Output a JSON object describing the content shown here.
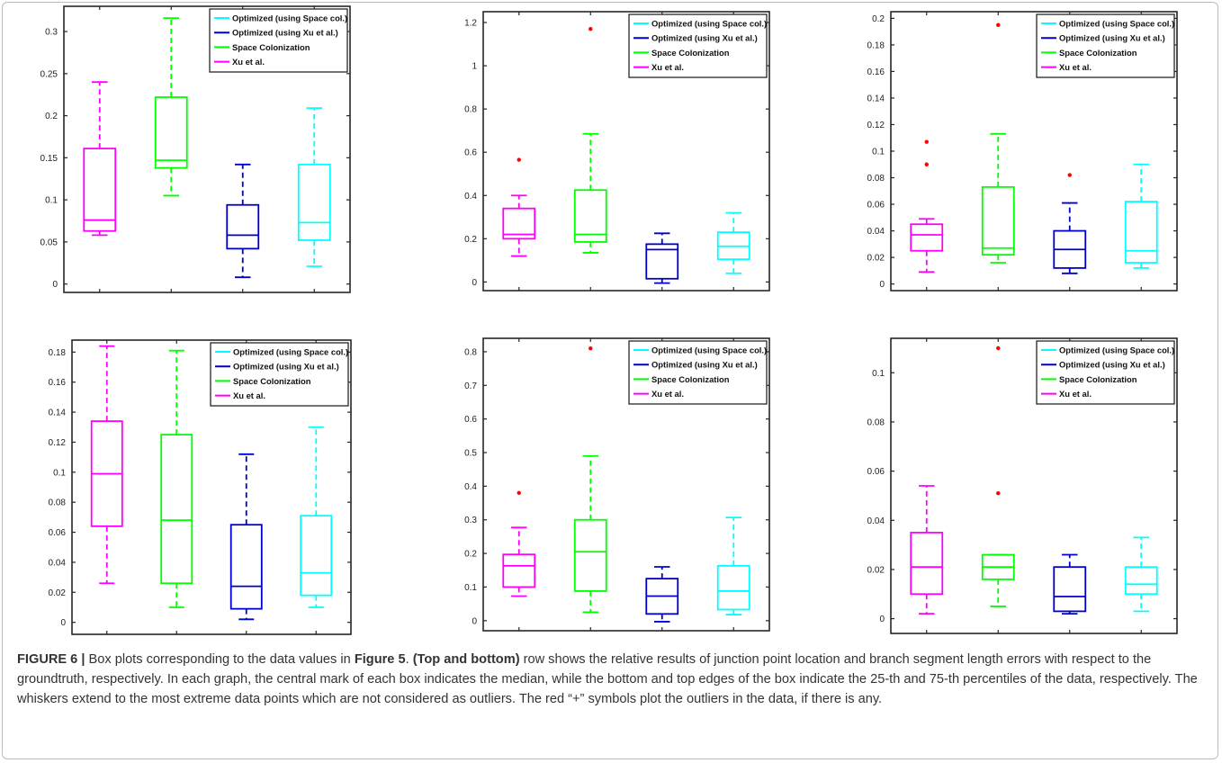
{
  "chart_data": [
    {
      "type": "box",
      "panel": "top-left",
      "title": "",
      "xlabel": "",
      "ylabel": "",
      "ylim": [
        -0.01,
        0.33
      ],
      "yticks": [
        0,
        0.05,
        0.1,
        0.15,
        0.2,
        0.25,
        0.3
      ],
      "ytick_labels": [
        "0",
        "0.05",
        "0.1",
        "0.15",
        "0.2",
        "0.25",
        "0.3"
      ],
      "legend_position": "top-right",
      "series": [
        {
          "name": "Xu et al.",
          "color": "#ff00ff",
          "whisker_low": 0.058,
          "q1": 0.063,
          "median": 0.076,
          "q3": 0.161,
          "whisker_high": 0.24,
          "outliers": []
        },
        {
          "name": "Space Colonization",
          "color": "#00ff00",
          "whisker_low": 0.105,
          "q1": 0.138,
          "median": 0.147,
          "q3": 0.222,
          "whisker_high": 0.316,
          "outliers": []
        },
        {
          "name": "Optimized (using Xu et al.)",
          "color": "#0000cc",
          "whisker_low": 0.008,
          "q1": 0.042,
          "median": 0.058,
          "q3": 0.094,
          "whisker_high": 0.142,
          "outliers": []
        },
        {
          "name": "Optimized (using Space col.)",
          "color": "#00ffff",
          "whisker_low": 0.021,
          "q1": 0.052,
          "median": 0.073,
          "q3": 0.142,
          "whisker_high": 0.209,
          "outliers": []
        }
      ]
    },
    {
      "type": "box",
      "panel": "top-middle",
      "title": "",
      "xlabel": "",
      "ylabel": "",
      "ylim": [
        -0.04,
        1.25
      ],
      "yticks": [
        0,
        0.2,
        0.4,
        0.6,
        0.8,
        1,
        1.2
      ],
      "ytick_labels": [
        "0",
        "0.2",
        "0.4",
        "0.6",
        "0.8",
        "1",
        "1.2"
      ],
      "legend_position": "top-right",
      "series": [
        {
          "name": "Xu et al.",
          "color": "#ff00ff",
          "whisker_low": 0.12,
          "q1": 0.2,
          "median": 0.22,
          "q3": 0.34,
          "whisker_high": 0.4,
          "outliers": [
            0.565
          ]
        },
        {
          "name": "Space Colonization",
          "color": "#00ff00",
          "whisker_low": 0.135,
          "q1": 0.185,
          "median": 0.22,
          "q3": 0.425,
          "whisker_high": 0.685,
          "outliers": [
            1.17
          ]
        },
        {
          "name": "Optimized (using Xu et al.)",
          "color": "#0000cc",
          "whisker_low": -0.005,
          "q1": 0.015,
          "median": 0.15,
          "q3": 0.175,
          "whisker_high": 0.225,
          "outliers": []
        },
        {
          "name": "Optimized (using Space col.)",
          "color": "#00ffff",
          "whisker_low": 0.04,
          "q1": 0.105,
          "median": 0.165,
          "q3": 0.23,
          "whisker_high": 0.32,
          "outliers": []
        }
      ]
    },
    {
      "type": "box",
      "panel": "top-right",
      "title": "",
      "xlabel": "",
      "ylabel": "",
      "ylim": [
        -0.005,
        0.205
      ],
      "yticks": [
        0,
        0.02,
        0.04,
        0.06,
        0.08,
        0.1,
        0.12,
        0.14,
        0.16,
        0.18,
        0.2
      ],
      "ytick_labels": [
        "0",
        "0.02",
        "0.04",
        "0.06",
        "0.08",
        "0.1",
        "0.12",
        "0.14",
        "0.16",
        "0.18",
        "0.2"
      ],
      "legend_position": "top-right",
      "series": [
        {
          "name": "Xu et al.",
          "color": "#ff00ff",
          "whisker_low": 0.009,
          "q1": 0.025,
          "median": 0.037,
          "q3": 0.045,
          "whisker_high": 0.049,
          "outliers": [
            0.09,
            0.107
          ]
        },
        {
          "name": "Space Colonization",
          "color": "#00ff00",
          "whisker_low": 0.016,
          "q1": 0.022,
          "median": 0.027,
          "q3": 0.073,
          "whisker_high": 0.113,
          "outliers": [
            0.195
          ]
        },
        {
          "name": "Optimized (using Xu et al.)",
          "color": "#0000cc",
          "whisker_low": 0.008,
          "q1": 0.012,
          "median": 0.026,
          "q3": 0.04,
          "whisker_high": 0.061,
          "outliers": [
            0.082
          ]
        },
        {
          "name": "Optimized (using Space col.)",
          "color": "#00ffff",
          "whisker_low": 0.012,
          "q1": 0.016,
          "median": 0.025,
          "q3": 0.062,
          "whisker_high": 0.09,
          "outliers": []
        }
      ]
    },
    {
      "type": "box",
      "panel": "bottom-left",
      "title": "",
      "xlabel": "",
      "ylabel": "",
      "ylim": [
        -0.008,
        0.188
      ],
      "yticks": [
        0,
        0.02,
        0.04,
        0.06,
        0.08,
        0.1,
        0.12,
        0.14,
        0.16,
        0.18
      ],
      "ytick_labels": [
        "0",
        "0.02",
        "0.04",
        "0.06",
        "0.08",
        "0.1",
        "0.12",
        "0.14",
        "0.16",
        "0.18"
      ],
      "legend_position": "top-right",
      "series": [
        {
          "name": "Xu et al.",
          "color": "#ff00ff",
          "whisker_low": 0.026,
          "q1": 0.064,
          "median": 0.099,
          "q3": 0.134,
          "whisker_high": 0.184,
          "outliers": []
        },
        {
          "name": "Space Colonization",
          "color": "#00ff00",
          "whisker_low": 0.01,
          "q1": 0.026,
          "median": 0.068,
          "q3": 0.125,
          "whisker_high": 0.181,
          "outliers": []
        },
        {
          "name": "Optimized (using Xu et al.)",
          "color": "#0000cc",
          "whisker_low": 0.002,
          "q1": 0.009,
          "median": 0.024,
          "q3": 0.065,
          "whisker_high": 0.112,
          "outliers": []
        },
        {
          "name": "Optimized (using Space col.)",
          "color": "#00ffff",
          "whisker_low": 0.01,
          "q1": 0.018,
          "median": 0.033,
          "q3": 0.071,
          "whisker_high": 0.13,
          "outliers": []
        }
      ]
    },
    {
      "type": "box",
      "panel": "bottom-middle",
      "title": "",
      "xlabel": "",
      "ylabel": "",
      "ylim": [
        -0.03,
        0.84
      ],
      "yticks": [
        0,
        0.1,
        0.2,
        0.3,
        0.4,
        0.5,
        0.6,
        0.7,
        0.8
      ],
      "ytick_labels": [
        "0",
        "0.1",
        "0.2",
        "0.3",
        "0.4",
        "0.5",
        "0.6",
        "0.7",
        "0.8"
      ],
      "legend_position": "top-right",
      "series": [
        {
          "name": "Xu et al.",
          "color": "#ff00ff",
          "whisker_low": 0.073,
          "q1": 0.1,
          "median": 0.163,
          "q3": 0.197,
          "whisker_high": 0.277,
          "outliers": [
            0.38
          ]
        },
        {
          "name": "Space Colonization",
          "color": "#00ff00",
          "whisker_low": 0.025,
          "q1": 0.088,
          "median": 0.205,
          "q3": 0.3,
          "whisker_high": 0.49,
          "outliers": [
            0.81
          ]
        },
        {
          "name": "Optimized (using Xu et al.)",
          "color": "#0000cc",
          "whisker_low": -0.003,
          "q1": 0.02,
          "median": 0.073,
          "q3": 0.125,
          "whisker_high": 0.16,
          "outliers": []
        },
        {
          "name": "Optimized (using Space col.)",
          "color": "#00ffff",
          "whisker_low": 0.018,
          "q1": 0.033,
          "median": 0.088,
          "q3": 0.163,
          "whisker_high": 0.307,
          "outliers": []
        }
      ]
    },
    {
      "type": "box",
      "panel": "bottom-right",
      "title": "",
      "xlabel": "",
      "ylabel": "",
      "ylim": [
        -0.006,
        0.114
      ],
      "yticks": [
        0,
        0.02,
        0.04,
        0.06,
        0.08,
        0.1
      ],
      "ytick_labels": [
        "0",
        "0.02",
        "0.04",
        "0.06",
        "0.08",
        "0.1"
      ],
      "legend_position": "top-right",
      "series": [
        {
          "name": "Xu et al.",
          "color": "#ff00ff",
          "whisker_low": 0.002,
          "q1": 0.01,
          "median": 0.021,
          "q3": 0.035,
          "whisker_high": 0.054,
          "outliers": []
        },
        {
          "name": "Space Colonization",
          "color": "#00ff00",
          "whisker_low": 0.005,
          "q1": 0.016,
          "median": 0.021,
          "q3": 0.026,
          "whisker_high": 0.026,
          "outliers": [
            0.051,
            0.11
          ]
        },
        {
          "name": "Optimized (using Xu et al.)",
          "color": "#0000cc",
          "whisker_low": 0.002,
          "q1": 0.003,
          "median": 0.009,
          "q3": 0.021,
          "whisker_high": 0.026,
          "outliers": []
        },
        {
          "name": "Optimized (using Space col.)",
          "color": "#00ffff",
          "whisker_low": 0.003,
          "q1": 0.01,
          "median": 0.014,
          "q3": 0.021,
          "whisker_high": 0.033,
          "outliers": []
        }
      ]
    }
  ],
  "legend": {
    "entries": [
      {
        "label": "Optimized (using Space col.)",
        "color": "#00ffff"
      },
      {
        "label": "Optimized (using Xu et al.)",
        "color": "#0000cc"
      },
      {
        "label": "Space Colonization",
        "color": "#00ff00"
      },
      {
        "label": "Xu et al.",
        "color": "#ff00ff"
      }
    ]
  },
  "caption": {
    "figure_label": "FIGURE 6 |",
    "text_1": " Box plots corresponding to the data values in ",
    "figure_ref": "Figure 5",
    "text_2": ". ",
    "row_ref": "(Top and bottom)",
    "text_3": " row shows the relative results of junction point location and branch segment length errors with respect to the groundtruth, respectively. In each graph, the central mark of each box indicates the median, while the bottom and top edges of the box indicate the 25-th and 75-th percentiles of the data, respectively. The whiskers extend to the most extreme data points which are not considered as outliers. The red “+” symbols plot the outliers in the data, if there is any."
  },
  "colors": {
    "outlier": "#ff0000",
    "axis": "#262626",
    "caption_text": "#333333"
  }
}
